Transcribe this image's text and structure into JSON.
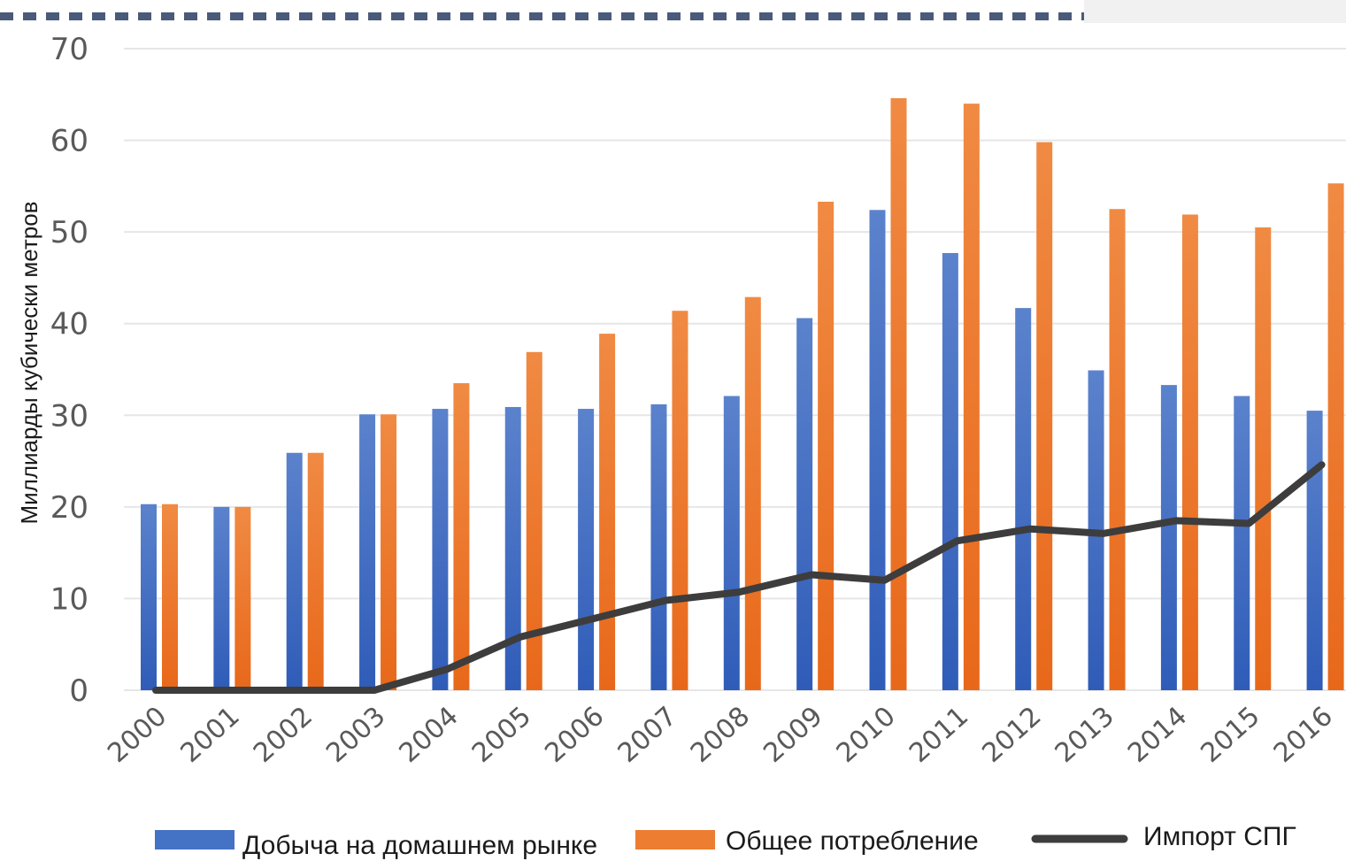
{
  "chart_data": {
    "type": "bar",
    "ylabel": "Миллиарды кубически метров",
    "xlabel": "",
    "ylim": [
      0,
      70
    ],
    "yticks": [
      0,
      10,
      20,
      30,
      40,
      50,
      60,
      70
    ],
    "grid": true,
    "legend_position": "bottom",
    "categories": [
      "2000",
      "2001",
      "2002",
      "2003",
      "2004",
      "2005",
      "2006",
      "2007",
      "2008",
      "2009",
      "2010",
      "2011",
      "2012",
      "2013",
      "2014",
      "2015",
      "2016"
    ],
    "series": [
      {
        "name": "Добыча на домашнем рынке",
        "type": "bar",
        "color": "#4472c4",
        "values": [
          20.3,
          20.0,
          25.9,
          30.1,
          30.7,
          30.9,
          30.7,
          31.2,
          32.1,
          40.6,
          52.4,
          47.7,
          41.7,
          34.9,
          33.3,
          32.1,
          30.5
        ]
      },
      {
        "name": "Общее потребление",
        "type": "bar",
        "color": "#ed7d31",
        "values": [
          20.3,
          20.0,
          25.9,
          30.1,
          33.5,
          36.9,
          38.9,
          41.4,
          42.9,
          53.3,
          64.6,
          64.0,
          59.8,
          52.5,
          51.9,
          50.5,
          55.3
        ]
      },
      {
        "name": "Импорт СПГ",
        "type": "line",
        "color": "#3d3d3d",
        "values": [
          0.0,
          0.0,
          0.0,
          0.0,
          2.3,
          5.8,
          7.8,
          9.8,
          10.7,
          12.6,
          12.0,
          16.3,
          17.6,
          17.1,
          18.5,
          18.2,
          24.6
        ]
      }
    ]
  }
}
